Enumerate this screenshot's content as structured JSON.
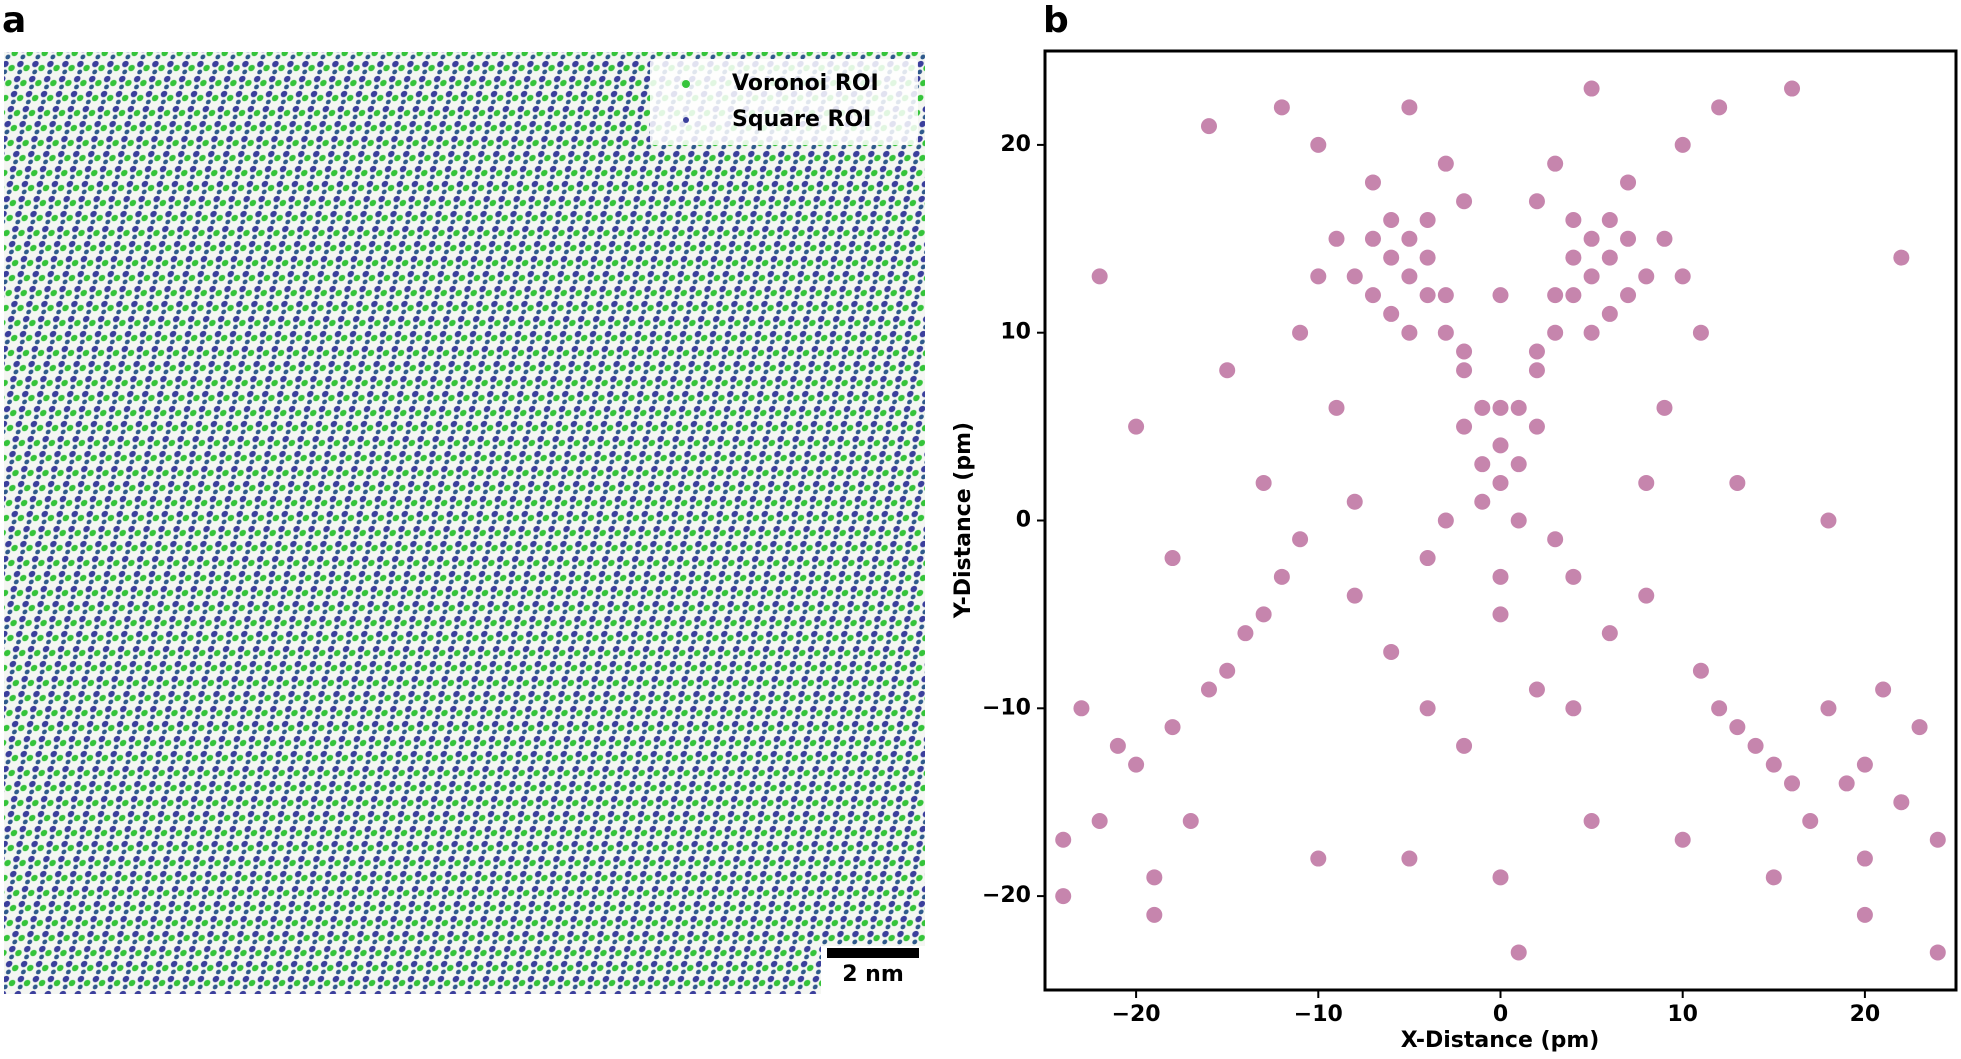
{
  "chart_data": [
    {
      "type": "image",
      "label": "a",
      "series": [
        {
          "name": "Voronoi ROI",
          "color": "#35c43a"
        },
        {
          "name": "Square ROI",
          "color": "#3b3f9c"
        }
      ],
      "scale_bar": "2 nm"
    },
    {
      "type": "scatter",
      "label": "b",
      "xlabel": "X-Distance (pm)",
      "ylabel": "Y-Distance (pm)",
      "x": [
        -6,
        -5,
        -4,
        -7,
        -3,
        -5,
        -6,
        -4,
        -2,
        -8,
        -9,
        -3,
        -1,
        0,
        -2,
        -10,
        -7,
        -5,
        -4,
        -6,
        5,
        6,
        4,
        7,
        3,
        5,
        6,
        4,
        2,
        8,
        9,
        3,
        1,
        0,
        2,
        10,
        7,
        5,
        4,
        6,
        -1,
        1,
        0,
        -2,
        2,
        -3,
        3,
        0,
        -1,
        1,
        -12,
        -14,
        -16,
        -18,
        -20,
        -22,
        -24,
        -15,
        -17,
        -19,
        -21,
        -23,
        -11,
        -13,
        12,
        14,
        16,
        18,
        20,
        22,
        24,
        15,
        17,
        19,
        21,
        23,
        11,
        13,
        -8,
        -6,
        -4,
        -2,
        0,
        2,
        4,
        6,
        8,
        -10,
        10,
        -12,
        12,
        -5,
        5,
        -3,
        3,
        -7,
        7,
        -20,
        -15,
        -10,
        -5,
        0,
        5,
        10,
        15,
        20,
        -22,
        22,
        -18,
        18,
        -9,
        9,
        -13,
        13,
        0,
        -4,
        4,
        -8,
        8,
        2,
        -2,
        -16,
        16,
        -24,
        24,
        -19,
        20,
        1,
        -11,
        11
      ],
      "values": [
        14,
        13,
        12,
        15,
        10,
        15,
        11,
        14,
        8,
        13,
        15,
        12,
        6,
        4,
        9,
        13,
        12,
        10,
        16,
        16,
        13,
        14,
        12,
        15,
        10,
        15,
        11,
        14,
        8,
        13,
        15,
        12,
        6,
        2,
        9,
        13,
        12,
        10,
        16,
        16,
        3,
        3,
        6,
        5,
        5,
        0,
        -1,
        -3,
        1,
        0,
        -3,
        -6,
        -9,
        -11,
        -13,
        -16,
        -17,
        -8,
        -16,
        -19,
        -12,
        -10,
        -1,
        -5,
        -10,
        -12,
        -14,
        -10,
        -13,
        -15,
        -17,
        -13,
        -16,
        -14,
        -9,
        -11,
        -8,
        -11,
        -4,
        -7,
        -10,
        -12,
        -5,
        -9,
        -10,
        -6,
        -4,
        20,
        20,
        22,
        22,
        22,
        23,
        19,
        19,
        18,
        18,
        5,
        8,
        -18,
        -18,
        -19,
        -16,
        -17,
        -19,
        -21,
        13,
        14,
        -2,
        0,
        6,
        6,
        2,
        2,
        12,
        -2,
        -3,
        1,
        2,
        17,
        17,
        21,
        23,
        -20,
        -23,
        -21,
        -18,
        -23,
        10,
        10
      ],
      "color": "#8e0b5b",
      "alpha": 0.5,
      "xlim": [
        -25,
        25
      ],
      "ylim": [
        -25,
        25
      ],
      "xticks": [
        {
          "value": -20,
          "label": "−20"
        },
        {
          "value": -10,
          "label": "−10"
        },
        0,
        10,
        20
      ],
      "yticks": [
        {
          "value": -20,
          "label": "−20"
        },
        {
          "value": -10,
          "label": "−10"
        },
        0,
        10,
        20
      ]
    }
  ]
}
